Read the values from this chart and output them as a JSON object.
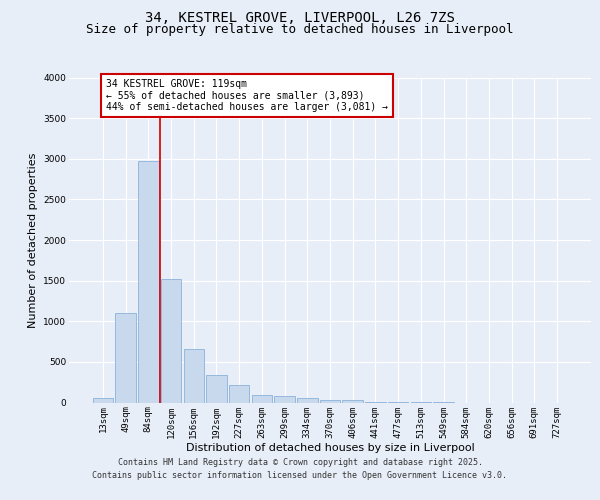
{
  "title": "34, KESTREL GROVE, LIVERPOOL, L26 7ZS",
  "subtitle": "Size of property relative to detached houses in Liverpool",
  "xlabel": "Distribution of detached houses by size in Liverpool",
  "ylabel": "Number of detached properties",
  "categories": [
    "13sqm",
    "49sqm",
    "84sqm",
    "120sqm",
    "156sqm",
    "192sqm",
    "227sqm",
    "263sqm",
    "299sqm",
    "334sqm",
    "370sqm",
    "406sqm",
    "441sqm",
    "477sqm",
    "513sqm",
    "549sqm",
    "584sqm",
    "620sqm",
    "656sqm",
    "691sqm",
    "727sqm"
  ],
  "values": [
    55,
    1105,
    2970,
    1520,
    655,
    340,
    215,
    90,
    85,
    60,
    35,
    25,
    10,
    5,
    2,
    1,
    0,
    0,
    0,
    0,
    0
  ],
  "bar_color": "#c8d9ee",
  "bar_edge_color": "#7ba8d4",
  "vline_color": "#cc0000",
  "annotation_text": "34 KESTREL GROVE: 119sqm\n← 55% of detached houses are smaller (3,893)\n44% of semi-detached houses are larger (3,081) →",
  "annotation_box_color": "#cc0000",
  "ylim": [
    0,
    4000
  ],
  "yticks": [
    0,
    500,
    1000,
    1500,
    2000,
    2500,
    3000,
    3500,
    4000
  ],
  "footer_line1": "Contains HM Land Registry data © Crown copyright and database right 2025.",
  "footer_line2": "Contains public sector information licensed under the Open Government Licence v3.0.",
  "background_color": "#e8eef8",
  "plot_bg_color": "#e8eef8",
  "grid_color": "#ffffff",
  "title_fontsize": 10,
  "subtitle_fontsize": 9,
  "axis_label_fontsize": 8,
  "tick_fontsize": 6.5,
  "annotation_fontsize": 7,
  "footer_fontsize": 6
}
